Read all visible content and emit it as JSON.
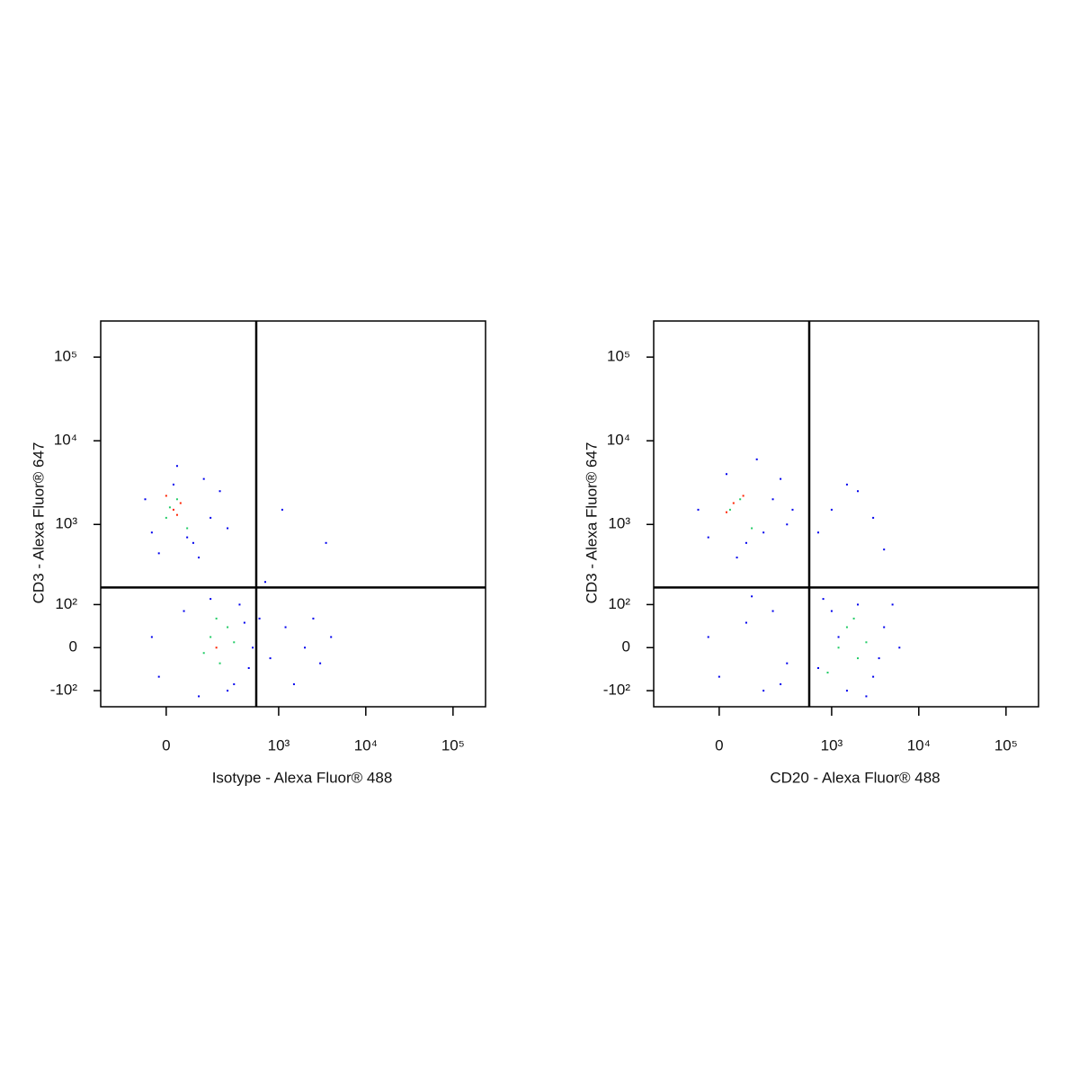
{
  "chart_data": [
    {
      "type": "scatter",
      "x_label": "Isotype - Alexa Fluor® 488",
      "y_label": "CD3 - Alexa Fluor® 647",
      "xscale": "biexponential",
      "yscale": "biexponential",
      "xlim": [
        -281,
        236000
      ],
      "ylim": [
        -165,
        270000
      ],
      "xticks": [
        0,
        {
          "value": 1000,
          "label": "10³"
        },
        {
          "value": 10000,
          "label": "10⁴"
        },
        {
          "value": 100000,
          "label": "10⁵"
        }
      ],
      "yticks": [
        {
          "value": -100,
          "label": "-10²"
        },
        0,
        {
          "value": 100,
          "label": "10²"
        },
        {
          "value": 1000,
          "label": "10³"
        },
        {
          "value": 10000,
          "label": "10⁴"
        },
        {
          "value": 100000,
          "label": "10⁵"
        }
      ],
      "gate": {
        "x": 550,
        "y": 170
      },
      "series": [
        {
          "color": "#0000ee",
          "x": [
            -40,
            20,
            80,
            150,
            -60,
            30,
            100,
            200,
            -20,
            120,
            60,
            250,
            -20,
            50,
            300,
            400,
            150,
            250,
            500,
            -40,
            100,
            350,
            450,
            600,
            800,
            1200,
            2000,
            3000,
            4000,
            1500,
            700,
            2500,
            3500,
            1100
          ],
          "y": [
            800,
            3000,
            600,
            1200,
            2000,
            5000,
            400,
            2500,
            450,
            3500,
            700,
            900,
            -60,
            80,
            -80,
            50,
            120,
            -100,
            0,
            20,
            -120,
            100,
            -40,
            60,
            -20,
            40,
            0,
            -30,
            20,
            -80,
            200,
            60,
            600,
            1500
          ]
        },
        {
          "color": "#22cc66",
          "x": [
            0,
            30,
            60,
            10,
            150,
            200,
            250,
            120,
            300,
            180
          ],
          "y": [
            1200,
            2000,
            900,
            1600,
            20,
            -30,
            40,
            -10,
            10,
            60
          ]
        },
        {
          "color": "#ff2200",
          "x": [
            20,
            40,
            0,
            30,
            180
          ],
          "y": [
            1500,
            1800,
            2200,
            1300,
            0
          ]
        }
      ]
    },
    {
      "type": "scatter",
      "x_label": "CD20 - Alexa Fluor® 488",
      "y_label": "CD3 - Alexa Fluor® 647",
      "xscale": "biexponential",
      "yscale": "biexponential",
      "xlim": [
        -281,
        236000
      ],
      "ylim": [
        -165,
        270000
      ],
      "xticks": [
        0,
        {
          "value": 1000,
          "label": "10³"
        },
        {
          "value": 10000,
          "label": "10⁴"
        },
        {
          "value": 100000,
          "label": "10⁵"
        }
      ],
      "yticks": [
        {
          "value": -100,
          "label": "-10²"
        },
        0,
        {
          "value": 100,
          "label": "10²"
        },
        {
          "value": 1000,
          "label": "10³"
        },
        {
          "value": 10000,
          "label": "10⁴"
        },
        {
          "value": 100000,
          "label": "10⁵"
        }
      ],
      "gate": {
        "x": 550,
        "y": 170
      },
      "series": [
        {
          "color": "#0000ee",
          "x": [
            -60,
            20,
            80,
            200,
            300,
            -30,
            120,
            250,
            50,
            150,
            350,
            0,
            80,
            150,
            200,
            -30,
            300,
            100,
            250,
            700,
            1000,
            1500,
            2000,
            3000,
            4000,
            6000,
            800,
            2500,
            5000,
            1200,
            3500,
            1000,
            2000,
            3000,
            1500,
            700,
            4000
          ],
          "y": [
            1500,
            4000,
            600,
            2000,
            1000,
            700,
            6000,
            3500,
            400,
            800,
            1500,
            -60,
            50,
            -100,
            80,
            20,
            -30,
            130,
            -80,
            -40,
            80,
            -100,
            100,
            -60,
            40,
            0,
            120,
            -120,
            100,
            20,
            -20,
            1500,
            2500,
            1200,
            3000,
            800,
            500
          ]
        },
        {
          "color": "#22cc66",
          "x": [
            30,
            60,
            100,
            1200,
            1500,
            2000,
            900,
            1800,
            2500
          ],
          "y": [
            1500,
            2000,
            900,
            0,
            40,
            -20,
            -50,
            60,
            10
          ]
        },
        {
          "color": "#ff2200",
          "x": [
            40,
            20,
            70
          ],
          "y": [
            1800,
            1400,
            2200
          ]
        }
      ]
    }
  ]
}
